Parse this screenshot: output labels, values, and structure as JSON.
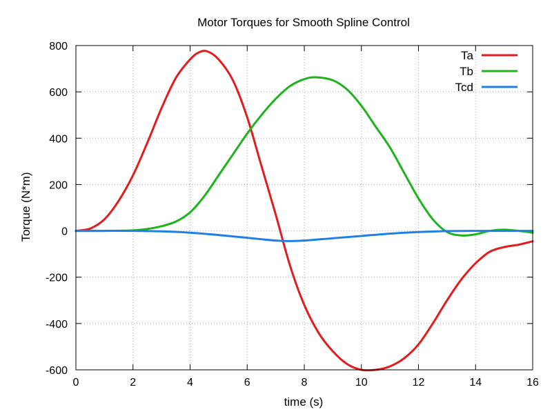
{
  "chart_data": {
    "type": "line",
    "title": "Motor Torques for Smooth Spline Control",
    "xlabel": "time (s)",
    "ylabel": "Torque (N*m)",
    "xlim": [
      0,
      16
    ],
    "ylim": [
      -600,
      800
    ],
    "xticks": [
      0,
      2,
      4,
      6,
      8,
      10,
      12,
      14,
      16
    ],
    "yticks": [
      -600,
      -400,
      -200,
      0,
      200,
      400,
      600,
      800
    ],
    "grid": true,
    "legend_position": "top-right",
    "series": [
      {
        "name": "Ta",
        "color": "#e41a1c",
        "x": [
          0,
          0.5,
          1,
          1.5,
          2,
          2.5,
          3,
          3.5,
          4,
          4.3,
          4.6,
          5,
          5.5,
          6,
          6.5,
          7,
          7.5,
          8,
          8.5,
          9,
          9.5,
          10,
          10.5,
          11,
          11.5,
          12,
          12.5,
          13,
          13.5,
          14,
          14.5,
          15,
          15.5,
          16
        ],
        "values": [
          0,
          10,
          50,
          130,
          240,
          380,
          530,
          660,
          740,
          770,
          775,
          740,
          650,
          490,
          280,
          70,
          -150,
          -320,
          -440,
          -520,
          -575,
          -600,
          -600,
          -585,
          -550,
          -490,
          -400,
          -300,
          -210,
          -140,
          -90,
          -70,
          -60,
          -45
        ]
      },
      {
        "name": "Tb",
        "color": "#1db31d",
        "x": [
          0,
          1,
          2,
          2.5,
          3,
          3.5,
          4,
          4.5,
          5,
          5.5,
          6,
          6.5,
          7,
          7.5,
          8,
          8.4,
          9,
          9.5,
          10,
          10.5,
          11,
          11.5,
          12,
          12.5,
          13,
          13.5,
          14,
          14.5,
          15,
          15.5,
          16
        ],
        "values": [
          0,
          0,
          2,
          8,
          20,
          40,
          80,
          150,
          240,
          330,
          420,
          500,
          570,
          625,
          655,
          663,
          650,
          610,
          540,
          450,
          360,
          250,
          140,
          50,
          -5,
          -20,
          -15,
          0,
          5,
          0,
          -8
        ]
      },
      {
        "name": "Tcd",
        "color": "#1e7fe6",
        "x": [
          0,
          1,
          2,
          3,
          4,
          5,
          6,
          7,
          7.5,
          8,
          9,
          10,
          11,
          12,
          13,
          14,
          15,
          16
        ],
        "values": [
          0,
          0,
          0,
          -2,
          -8,
          -18,
          -30,
          -42,
          -44,
          -42,
          -32,
          -22,
          -12,
          -5,
          -1,
          0,
          0,
          0
        ]
      }
    ]
  }
}
